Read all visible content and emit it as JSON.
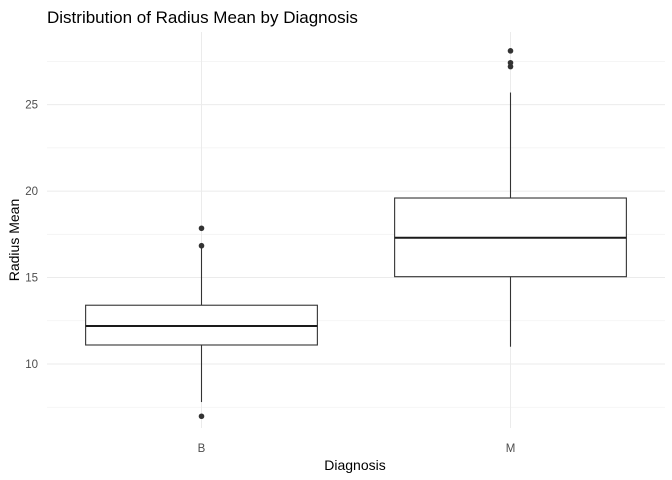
{
  "chart_data": {
    "type": "box",
    "title": "Distribution of Radius Mean by Diagnosis",
    "xlabel": "Diagnosis",
    "ylabel": "Radius Mean",
    "categories": [
      "B",
      "M"
    ],
    "y_ticks": [
      10,
      15,
      20,
      25
    ],
    "ylim": [
      6.3,
      29.2
    ],
    "grid": true,
    "boxes": [
      {
        "category": "B",
        "whisker_low": 7.8,
        "q1": 11.1,
        "median": 12.2,
        "q3": 13.4,
        "whisker_high": 16.8,
        "outliers": [
          6.98,
          16.84,
          17.85
        ]
      },
      {
        "category": "M",
        "whisker_low": 11.0,
        "q1": 15.05,
        "median": 17.3,
        "q3": 19.6,
        "whisker_high": 25.7,
        "outliers": [
          27.2,
          27.42,
          28.11
        ]
      }
    ]
  }
}
